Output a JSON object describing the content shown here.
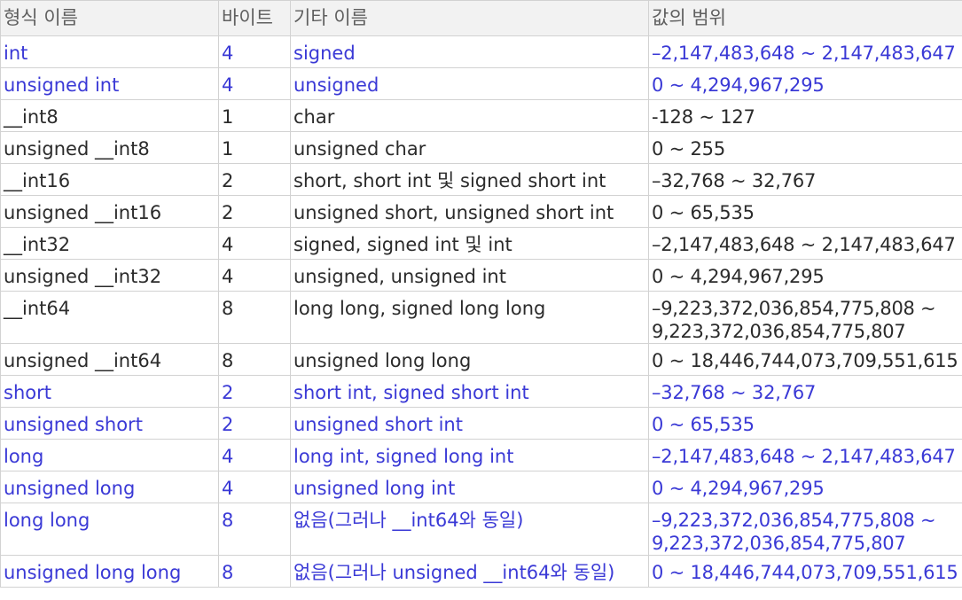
{
  "colors": {
    "header_bg": "#f2f2f2",
    "header_text": "#5f5f5f",
    "border": "#d2d2d2",
    "text": "#2b2b2b",
    "highlight_text": "#3a39d6"
  },
  "table": {
    "headers": [
      "형식 이름",
      "바이트",
      "기타 이름",
      "값의 범위"
    ],
    "rows": [
      {
        "type": "int",
        "bytes": "4",
        "other": "signed",
        "range": "–2,147,483,648 ~ 2,147,483,647",
        "highlight": true
      },
      {
        "type": "unsigned int",
        "bytes": "4",
        "other": "unsigned",
        "range": "0 ~ 4,294,967,295",
        "highlight": true
      },
      {
        "type": "__int8",
        "bytes": "1",
        "other": "char",
        "range": "-128 ~ 127",
        "highlight": false
      },
      {
        "type": "unsigned __int8",
        "bytes": "1",
        "other": "unsigned char",
        "range": "0 ~ 255",
        "highlight": false
      },
      {
        "type": "__int16",
        "bytes": "2",
        "other": "short, short int 및 signed short int",
        "range": "–32,768 ~ 32,767",
        "highlight": false
      },
      {
        "type": "unsigned __int16",
        "bytes": "2",
        "other": "unsigned short, unsigned short int",
        "range": "0 ~ 65,535",
        "highlight": false
      },
      {
        "type": "__int32",
        "bytes": "4",
        "other": "signed, signed int 및 int",
        "range": "–2,147,483,648 ~ 2,147,483,647",
        "highlight": false
      },
      {
        "type": "unsigned __int32",
        "bytes": "4",
        "other": "unsigned, unsigned int",
        "range": "0 ~ 4,294,967,295",
        "highlight": false
      },
      {
        "type": "__int64",
        "bytes": "8",
        "other": "long long, signed long long",
        "range": "–9,223,372,036,854,775,808 ~ 9,223,372,036,854,775,807",
        "highlight": false
      },
      {
        "type": "unsigned __int64",
        "bytes": "8",
        "other": "unsigned long long",
        "range": "0 ~ 18,446,744,073,709,551,615",
        "highlight": false
      },
      {
        "type": "short",
        "bytes": "2",
        "other": "short int, signed short int",
        "range": "–32,768 ~ 32,767",
        "highlight": true
      },
      {
        "type": "unsigned short",
        "bytes": "2",
        "other": "unsigned short int",
        "range": "0 ~ 65,535",
        "highlight": true
      },
      {
        "type": "long",
        "bytes": "4",
        "other": "long int, signed long int",
        "range": "–2,147,483,648 ~ 2,147,483,647",
        "highlight": true
      },
      {
        "type": "unsigned long",
        "bytes": "4",
        "other": "unsigned long int",
        "range": "0 ~ 4,294,967,295",
        "highlight": true
      },
      {
        "type": "long long",
        "bytes": "8",
        "other": "없음(그러나 __int64와 동일)",
        "range": "–9,223,372,036,854,775,808 ~ 9,223,372,036,854,775,807",
        "highlight": true
      },
      {
        "type": "unsigned long long",
        "bytes": "8",
        "other": "없음(그러나 unsigned __int64와 동일)",
        "range": "0 ~ 18,446,744,073,709,551,615",
        "highlight": true
      }
    ]
  }
}
